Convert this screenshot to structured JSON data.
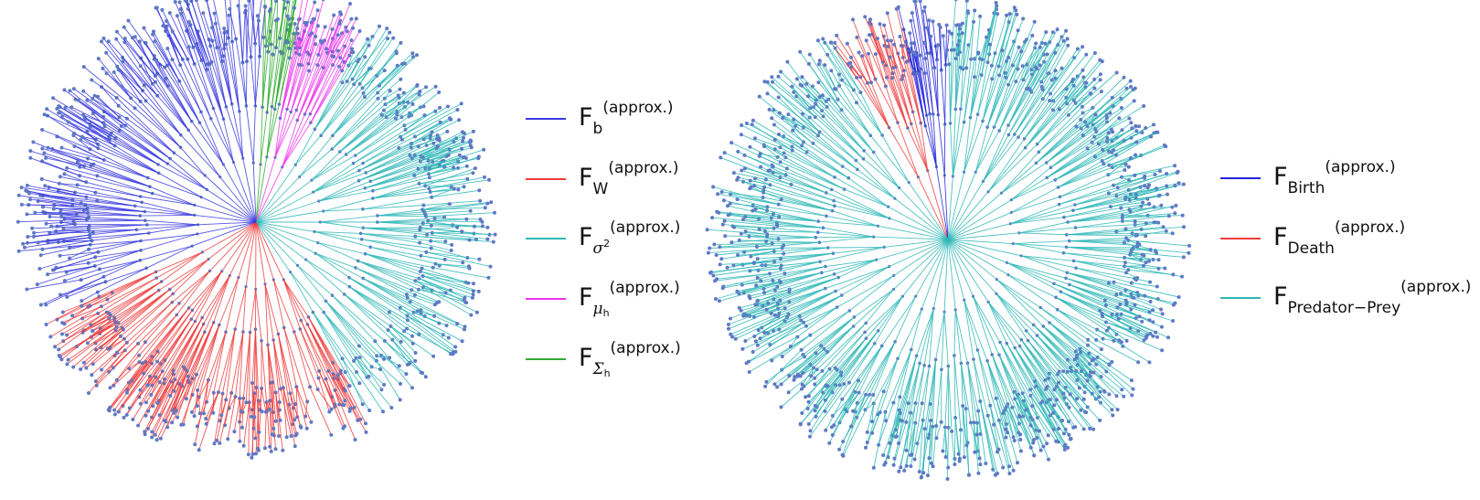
{
  "trees": [
    {
      "name": "left-tree",
      "legend": [
        {
          "base": "F",
          "sub": "b",
          "greek": "",
          "greek_sub": "",
          "greek_sup": "",
          "sup": "(approx.)",
          "color": "#3a3ae0"
        },
        {
          "base": "F",
          "sub": "W",
          "greek": "",
          "greek_sub": "",
          "greek_sup": "",
          "sup": "(approx.)",
          "color": "#ee3b3b"
        },
        {
          "base": "F",
          "sub": "",
          "greek": "σ",
          "greek_sub": "",
          "greek_sup": "2",
          "sup": "(approx.)",
          "color": "#2fb7b7"
        },
        {
          "base": "F",
          "sub": "",
          "greek": "μ",
          "greek_sub": "h",
          "greek_sup": "",
          "sup": "(approx.)",
          "color": "#ee33ee"
        },
        {
          "base": "F",
          "sub": "",
          "greek": "Σ",
          "greek_sub": "h",
          "greek_sup": "",
          "sup": "(approx.)",
          "color": "#33aa33"
        }
      ]
    },
    {
      "name": "right-tree",
      "legend": [
        {
          "base": "F",
          "sub": "Birth",
          "greek": "",
          "greek_sub": "",
          "greek_sup": "",
          "sup": "(approx.)",
          "color": "#2222dd"
        },
        {
          "base": "F",
          "sub": "Death",
          "greek": "",
          "greek_sub": "",
          "greek_sup": "",
          "sup": "(approx.)",
          "color": "#ee3b3b"
        },
        {
          "base": "F",
          "sub": "Predator−Prey",
          "greek": "",
          "greek_sub": "",
          "greek_sup": "",
          "sup": "(approx.)",
          "color": "#2fb7b7"
        }
      ]
    }
  ],
  "colors": {
    "node": "#5f79c4"
  }
}
